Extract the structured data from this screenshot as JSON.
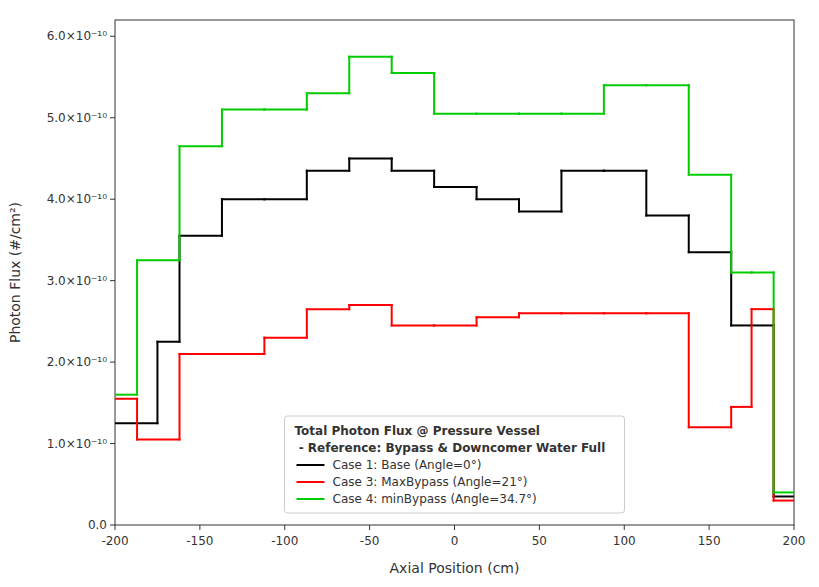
{
  "chart_data": {
    "type": "step",
    "xlabel": "Axial Position (cm)",
    "ylabel": "Photon Flux (#/cm²)",
    "xlim": [
      -200,
      200
    ],
    "ylim": [
      0.0,
      6.2e-10
    ],
    "xticks": [
      -200,
      -150,
      -100,
      -50,
      0,
      50,
      100,
      150,
      200
    ],
    "yticks": [
      {
        "value": 0.0,
        "label": "0.0"
      },
      {
        "value": 1e-10,
        "label": "1.0×10⁻¹⁰"
      },
      {
        "value": 2e-10,
        "label": "2.0×10⁻¹⁰"
      },
      {
        "value": 3e-10,
        "label": "3.0×10⁻¹⁰"
      },
      {
        "value": 4e-10,
        "label": "4.0×10⁻¹⁰"
      },
      {
        "value": 5e-10,
        "label": "5.0×10⁻¹⁰"
      },
      {
        "value": 6e-10,
        "label": "6.0×10⁻¹⁰"
      }
    ],
    "grid": false,
    "legend": "lower center",
    "legend_title": [
      "Total Photon Flux @ Pressure Vessel",
      " - Reference: Bypass & Downcomer Water Full"
    ],
    "series": [
      {
        "name": "Case 1: Base (Angle=0°)",
        "color": "#000000",
        "bins": [
          -200,
          -175,
          -162,
          -137,
          -112,
          -87,
          -62,
          -37,
          -12,
          13,
          38,
          63,
          88,
          113,
          138,
          163,
          175,
          188,
          200
        ],
        "values": [
          1.25e-10,
          2.25e-10,
          3.55e-10,
          4e-10,
          4e-10,
          4.35e-10,
          4.5e-10,
          4.35e-10,
          4.15e-10,
          4e-10,
          3.85e-10,
          4.35e-10,
          4.35e-10,
          3.8e-10,
          3.35e-10,
          2.45e-10,
          2.45e-10,
          3.5e-11
        ]
      },
      {
        "name": "Case 3: MaxBypass (Angle=21°)",
        "color": "#ff0000",
        "bins": [
          -200,
          -187,
          -162,
          -137,
          -112,
          -87,
          -62,
          -37,
          -12,
          13,
          38,
          63,
          88,
          113,
          138,
          163,
          175,
          188,
          200
        ],
        "values": [
          1.55e-10,
          1.05e-10,
          2.1e-10,
          2.1e-10,
          2.3e-10,
          2.65e-10,
          2.7e-10,
          2.45e-10,
          2.45e-10,
          2.55e-10,
          2.6e-10,
          2.6e-10,
          2.6e-10,
          2.6e-10,
          1.2e-10,
          1.45e-10,
          2.65e-10,
          3e-11
        ]
      },
      {
        "name": "Case 4: minBypass (Angle=34.7°)",
        "color": "#00cc00",
        "bins": [
          -200,
          -187,
          -162,
          -137,
          -112,
          -87,
          -62,
          -37,
          -12,
          13,
          38,
          63,
          88,
          113,
          138,
          163,
          175,
          188,
          200
        ],
        "values": [
          1.6e-10,
          3.25e-10,
          4.65e-10,
          5.1e-10,
          5.1e-10,
          5.3e-10,
          5.75e-10,
          5.55e-10,
          5.05e-10,
          5.05e-10,
          5.05e-10,
          5.05e-10,
          5.4e-10,
          5.4e-10,
          4.3e-10,
          3.1e-10,
          3.1e-10,
          4e-11
        ]
      }
    ]
  }
}
